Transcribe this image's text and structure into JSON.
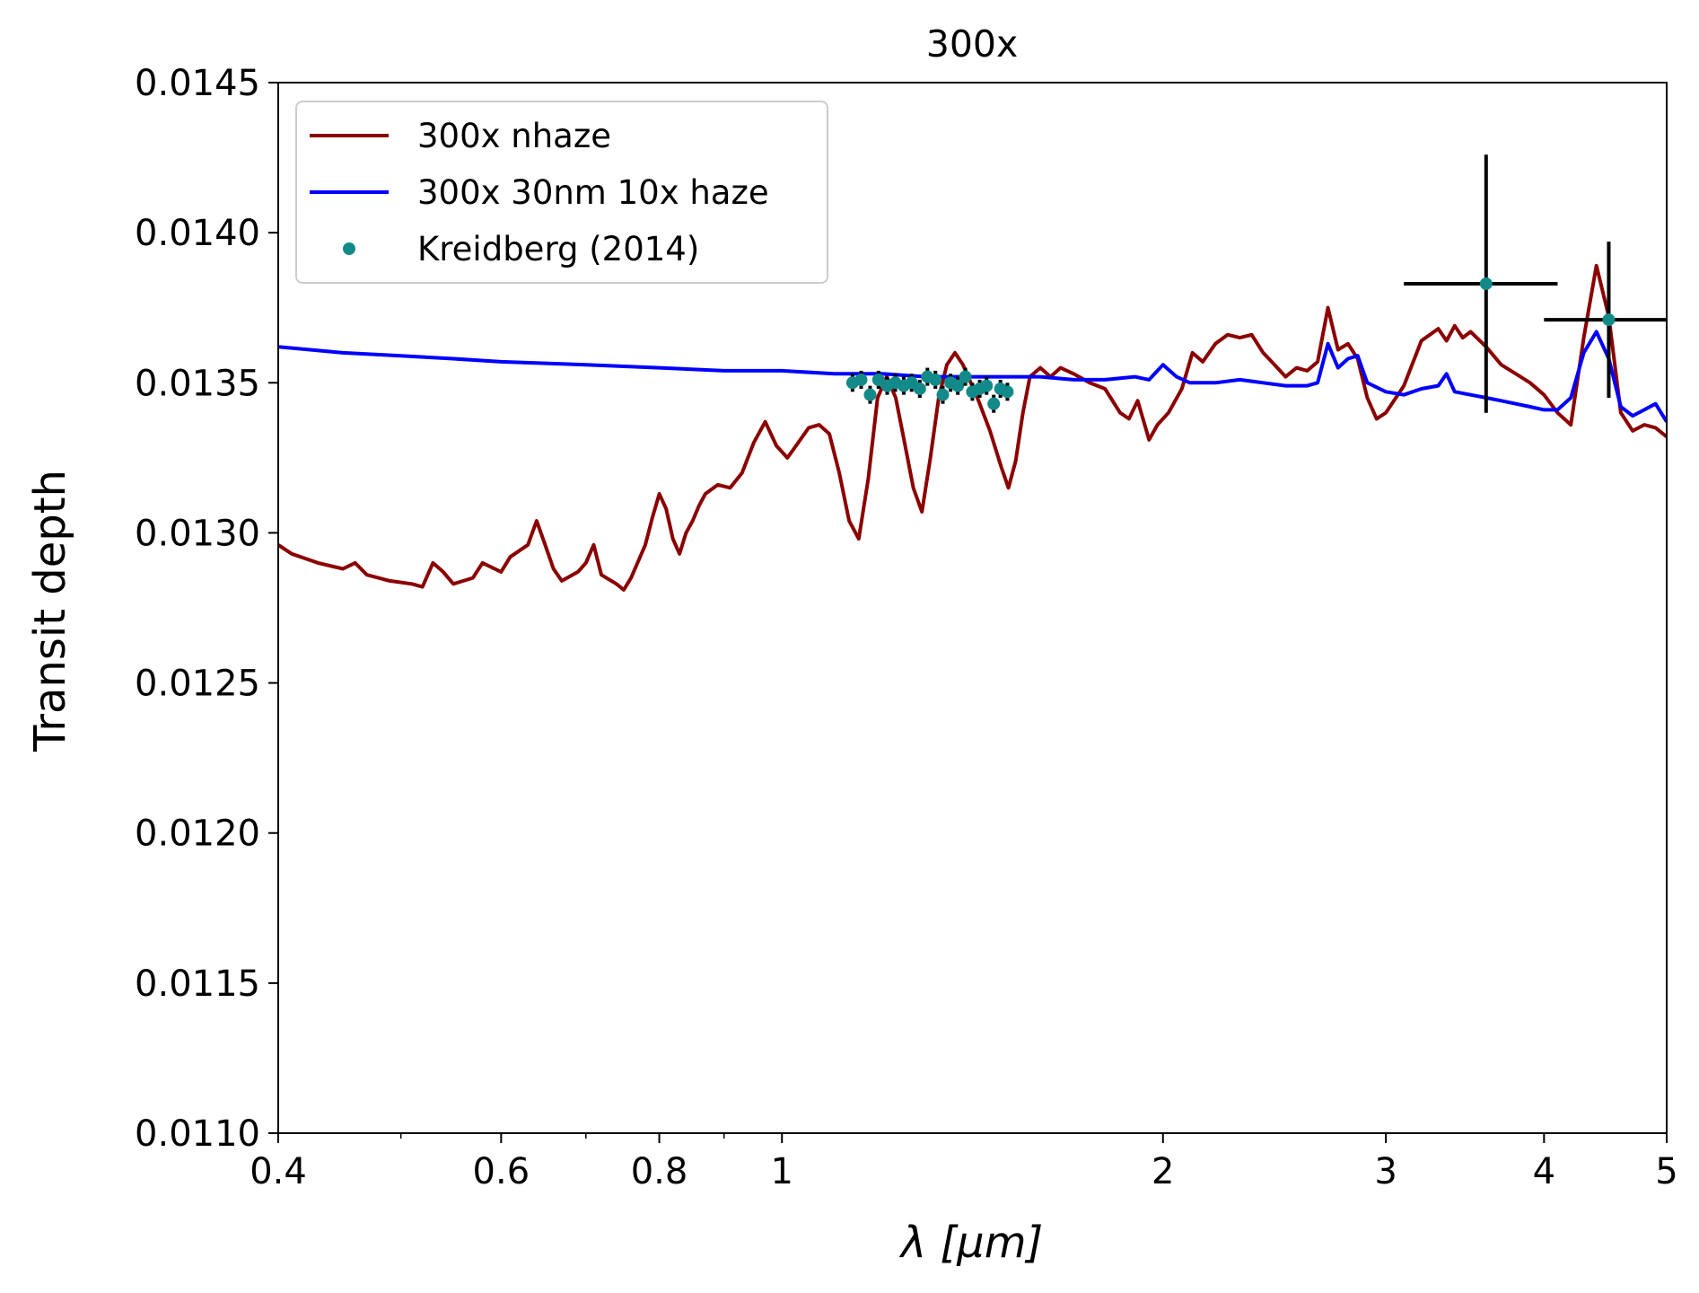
{
  "chart_data": {
    "type": "line",
    "title": "300x",
    "xlabel": "λ [μm]",
    "ylabel": "Transit depth",
    "xscale": "log",
    "xlim": [
      0.4,
      5
    ],
    "ylim": [
      0.011,
      0.0145
    ],
    "xticks": [
      {
        "value": 0.4,
        "label": "0.4"
      },
      {
        "value": 0.6,
        "label": "0.6"
      },
      {
        "value": 0.8,
        "label": "0.8"
      },
      {
        "value": 1,
        "label": "1"
      },
      {
        "value": 2,
        "label": "2"
      },
      {
        "value": 3,
        "label": "3"
      },
      {
        "value": 4,
        "label": "4"
      },
      {
        "value": 5,
        "label": "5"
      }
    ],
    "xminor": [
      0.5,
      0.7,
      0.9
    ],
    "yticks": [
      {
        "value": 0.011,
        "label": "0.0110"
      },
      {
        "value": 0.0115,
        "label": "0.0115"
      },
      {
        "value": 0.012,
        "label": "0.0120"
      },
      {
        "value": 0.0125,
        "label": "0.0125"
      },
      {
        "value": 0.013,
        "label": "0.0130"
      },
      {
        "value": 0.0135,
        "label": "0.0135"
      },
      {
        "value": 0.014,
        "label": "0.0140"
      },
      {
        "value": 0.0145,
        "label": "0.0145"
      }
    ],
    "grid": false,
    "legend_position": "upper-left",
    "series": [
      {
        "name": "300x nhaze",
        "kind": "line",
        "color": "#8b0000",
        "points": [
          [
            0.4,
            0.01296
          ],
          [
            0.41,
            0.01293
          ],
          [
            0.43,
            0.0129
          ],
          [
            0.45,
            0.01288
          ],
          [
            0.46,
            0.0129
          ],
          [
            0.47,
            0.01286
          ],
          [
            0.49,
            0.01284
          ],
          [
            0.51,
            0.01283
          ],
          [
            0.52,
            0.01282
          ],
          [
            0.53,
            0.0129
          ],
          [
            0.54,
            0.01287
          ],
          [
            0.55,
            0.01283
          ],
          [
            0.57,
            0.01285
          ],
          [
            0.58,
            0.0129
          ],
          [
            0.6,
            0.01287
          ],
          [
            0.61,
            0.01292
          ],
          [
            0.63,
            0.01296
          ],
          [
            0.64,
            0.01304
          ],
          [
            0.65,
            0.01296
          ],
          [
            0.66,
            0.01288
          ],
          [
            0.67,
            0.01284
          ],
          [
            0.69,
            0.01287
          ],
          [
            0.7,
            0.0129
          ],
          [
            0.71,
            0.01296
          ],
          [
            0.72,
            0.01286
          ],
          [
            0.74,
            0.01283
          ],
          [
            0.75,
            0.01281
          ],
          [
            0.76,
            0.01285
          ],
          [
            0.78,
            0.01296
          ],
          [
            0.79,
            0.01305
          ],
          [
            0.8,
            0.01313
          ],
          [
            0.81,
            0.01308
          ],
          [
            0.82,
            0.01298
          ],
          [
            0.83,
            0.01293
          ],
          [
            0.84,
            0.013
          ],
          [
            0.85,
            0.01304
          ],
          [
            0.86,
            0.01309
          ],
          [
            0.87,
            0.01313
          ],
          [
            0.89,
            0.01316
          ],
          [
            0.91,
            0.01315
          ],
          [
            0.93,
            0.0132
          ],
          [
            0.95,
            0.0133
          ],
          [
            0.97,
            0.01337
          ],
          [
            0.99,
            0.01329
          ],
          [
            1.01,
            0.01325
          ],
          [
            1.03,
            0.0133
          ],
          [
            1.05,
            0.01335
          ],
          [
            1.07,
            0.01336
          ],
          [
            1.09,
            0.01333
          ],
          [
            1.11,
            0.0132
          ],
          [
            1.13,
            0.01304
          ],
          [
            1.15,
            0.01298
          ],
          [
            1.17,
            0.01318
          ],
          [
            1.19,
            0.01345
          ],
          [
            1.21,
            0.01352
          ],
          [
            1.23,
            0.01345
          ],
          [
            1.25,
            0.0133
          ],
          [
            1.27,
            0.01315
          ],
          [
            1.29,
            0.01307
          ],
          [
            1.31,
            0.01325
          ],
          [
            1.33,
            0.01345
          ],
          [
            1.35,
            0.01356
          ],
          [
            1.37,
            0.0136
          ],
          [
            1.39,
            0.01356
          ],
          [
            1.41,
            0.0135
          ],
          [
            1.43,
            0.01344
          ],
          [
            1.46,
            0.01334
          ],
          [
            1.49,
            0.01322
          ],
          [
            1.51,
            0.01315
          ],
          [
            1.53,
            0.01324
          ],
          [
            1.55,
            0.0134
          ],
          [
            1.57,
            0.01352
          ],
          [
            1.6,
            0.01355
          ],
          [
            1.63,
            0.01352
          ],
          [
            1.66,
            0.01355
          ],
          [
            1.7,
            0.01353
          ],
          [
            1.75,
            0.0135
          ],
          [
            1.8,
            0.01348
          ],
          [
            1.85,
            0.0134
          ],
          [
            1.88,
            0.01338
          ],
          [
            1.91,
            0.01344
          ],
          [
            1.95,
            0.01331
          ],
          [
            1.98,
            0.01336
          ],
          [
            2.02,
            0.0134
          ],
          [
            2.07,
            0.01348
          ],
          [
            2.11,
            0.0136
          ],
          [
            2.15,
            0.01357
          ],
          [
            2.2,
            0.01363
          ],
          [
            2.25,
            0.01366
          ],
          [
            2.3,
            0.01365
          ],
          [
            2.35,
            0.01366
          ],
          [
            2.4,
            0.0136
          ],
          [
            2.45,
            0.01356
          ],
          [
            2.5,
            0.01352
          ],
          [
            2.55,
            0.01355
          ],
          [
            2.6,
            0.01354
          ],
          [
            2.65,
            0.01357
          ],
          [
            2.7,
            0.01375
          ],
          [
            2.75,
            0.01361
          ],
          [
            2.8,
            0.01363
          ],
          [
            2.85,
            0.01358
          ],
          [
            2.9,
            0.01345
          ],
          [
            2.95,
            0.01338
          ],
          [
            3.0,
            0.0134
          ],
          [
            3.1,
            0.01349
          ],
          [
            3.2,
            0.01364
          ],
          [
            3.3,
            0.01368
          ],
          [
            3.35,
            0.01364
          ],
          [
            3.4,
            0.01369
          ],
          [
            3.45,
            0.01365
          ],
          [
            3.5,
            0.01367
          ],
          [
            3.6,
            0.01362
          ],
          [
            3.7,
            0.01356
          ],
          [
            3.8,
            0.01353
          ],
          [
            3.9,
            0.0135
          ],
          [
            4.0,
            0.01346
          ],
          [
            4.1,
            0.0134
          ],
          [
            4.2,
            0.01336
          ],
          [
            4.3,
            0.01365
          ],
          [
            4.4,
            0.01389
          ],
          [
            4.5,
            0.01372
          ],
          [
            4.6,
            0.0134
          ],
          [
            4.7,
            0.01334
          ],
          [
            4.8,
            0.01336
          ],
          [
            4.9,
            0.01335
          ],
          [
            5.0,
            0.01332
          ]
        ]
      },
      {
        "name": "300x 30nm 10x haze",
        "kind": "line",
        "color": "#0000ff",
        "points": [
          [
            0.4,
            0.01362
          ],
          [
            0.45,
            0.0136
          ],
          [
            0.5,
            0.01359
          ],
          [
            0.55,
            0.01358
          ],
          [
            0.6,
            0.01357
          ],
          [
            0.7,
            0.01356
          ],
          [
            0.8,
            0.01355
          ],
          [
            0.9,
            0.01354
          ],
          [
            1.0,
            0.01354
          ],
          [
            1.1,
            0.01353
          ],
          [
            1.2,
            0.01353
          ],
          [
            1.3,
            0.01352
          ],
          [
            1.4,
            0.01352
          ],
          [
            1.5,
            0.01352
          ],
          [
            1.6,
            0.01352
          ],
          [
            1.7,
            0.01351
          ],
          [
            1.8,
            0.01351
          ],
          [
            1.9,
            0.01352
          ],
          [
            1.95,
            0.01351
          ],
          [
            2.0,
            0.01356
          ],
          [
            2.05,
            0.01352
          ],
          [
            2.1,
            0.0135
          ],
          [
            2.2,
            0.0135
          ],
          [
            2.3,
            0.01351
          ],
          [
            2.4,
            0.0135
          ],
          [
            2.5,
            0.01349
          ],
          [
            2.6,
            0.01349
          ],
          [
            2.65,
            0.0135
          ],
          [
            2.7,
            0.01363
          ],
          [
            2.75,
            0.01355
          ],
          [
            2.8,
            0.01358
          ],
          [
            2.85,
            0.01359
          ],
          [
            2.9,
            0.0135
          ],
          [
            3.0,
            0.01347
          ],
          [
            3.1,
            0.01346
          ],
          [
            3.2,
            0.01348
          ],
          [
            3.3,
            0.01349
          ],
          [
            3.35,
            0.01353
          ],
          [
            3.4,
            0.01347
          ],
          [
            3.5,
            0.01346
          ],
          [
            3.6,
            0.01345
          ],
          [
            3.7,
            0.01344
          ],
          [
            3.8,
            0.01343
          ],
          [
            3.9,
            0.01342
          ],
          [
            4.0,
            0.01341
          ],
          [
            4.1,
            0.01341
          ],
          [
            4.2,
            0.01345
          ],
          [
            4.3,
            0.0136
          ],
          [
            4.4,
            0.01367
          ],
          [
            4.5,
            0.01358
          ],
          [
            4.6,
            0.01342
          ],
          [
            4.7,
            0.01339
          ],
          [
            4.8,
            0.01341
          ],
          [
            4.9,
            0.01343
          ],
          [
            5.0,
            0.01337
          ]
        ]
      }
    ],
    "scatter": {
      "name": "Kreidberg (2014)",
      "color": "#138a8a",
      "errorbar_color": "#000000",
      "points": [
        {
          "x": 1.137,
          "y": 0.0135,
          "xerr": 0.009,
          "yerr": 3e-05
        },
        {
          "x": 1.155,
          "y": 0.01351,
          "xerr": 0.009,
          "yerr": 3e-05
        },
        {
          "x": 1.174,
          "y": 0.01346,
          "xerr": 0.009,
          "yerr": 3e-05
        },
        {
          "x": 1.192,
          "y": 0.01351,
          "xerr": 0.009,
          "yerr": 3e-05
        },
        {
          "x": 1.211,
          "y": 0.01349,
          "xerr": 0.009,
          "yerr": 3e-05
        },
        {
          "x": 1.229,
          "y": 0.0135,
          "xerr": 0.009,
          "yerr": 3e-05
        },
        {
          "x": 1.248,
          "y": 0.01349,
          "xerr": 0.009,
          "yerr": 3e-05
        },
        {
          "x": 1.266,
          "y": 0.0135,
          "xerr": 0.009,
          "yerr": 3e-05
        },
        {
          "x": 1.285,
          "y": 0.01348,
          "xerr": 0.009,
          "yerr": 3e-05
        },
        {
          "x": 1.303,
          "y": 0.01352,
          "xerr": 0.009,
          "yerr": 3e-05
        },
        {
          "x": 1.322,
          "y": 0.01351,
          "xerr": 0.009,
          "yerr": 3e-05
        },
        {
          "x": 1.34,
          "y": 0.01346,
          "xerr": 0.009,
          "yerr": 3e-05
        },
        {
          "x": 1.359,
          "y": 0.0135,
          "xerr": 0.009,
          "yerr": 3e-05
        },
        {
          "x": 1.377,
          "y": 0.01349,
          "xerr": 0.009,
          "yerr": 3e-05
        },
        {
          "x": 1.396,
          "y": 0.01352,
          "xerr": 0.009,
          "yerr": 3e-05
        },
        {
          "x": 1.414,
          "y": 0.01347,
          "xerr": 0.009,
          "yerr": 3e-05
        },
        {
          "x": 1.433,
          "y": 0.01348,
          "xerr": 0.009,
          "yerr": 3e-05
        },
        {
          "x": 1.451,
          "y": 0.01349,
          "xerr": 0.009,
          "yerr": 3e-05
        },
        {
          "x": 1.47,
          "y": 0.01343,
          "xerr": 0.009,
          "yerr": 3e-05
        },
        {
          "x": 1.488,
          "y": 0.01348,
          "xerr": 0.009,
          "yerr": 3e-05
        },
        {
          "x": 1.507,
          "y": 0.01347,
          "xerr": 0.009,
          "yerr": 3e-05
        },
        {
          "x": 3.6,
          "y": 0.01383,
          "xerr": 0.5,
          "yerr": 0.00043
        },
        {
          "x": 4.5,
          "y": 0.01371,
          "xerr": 0.5,
          "yerr": 0.00026
        }
      ]
    }
  }
}
